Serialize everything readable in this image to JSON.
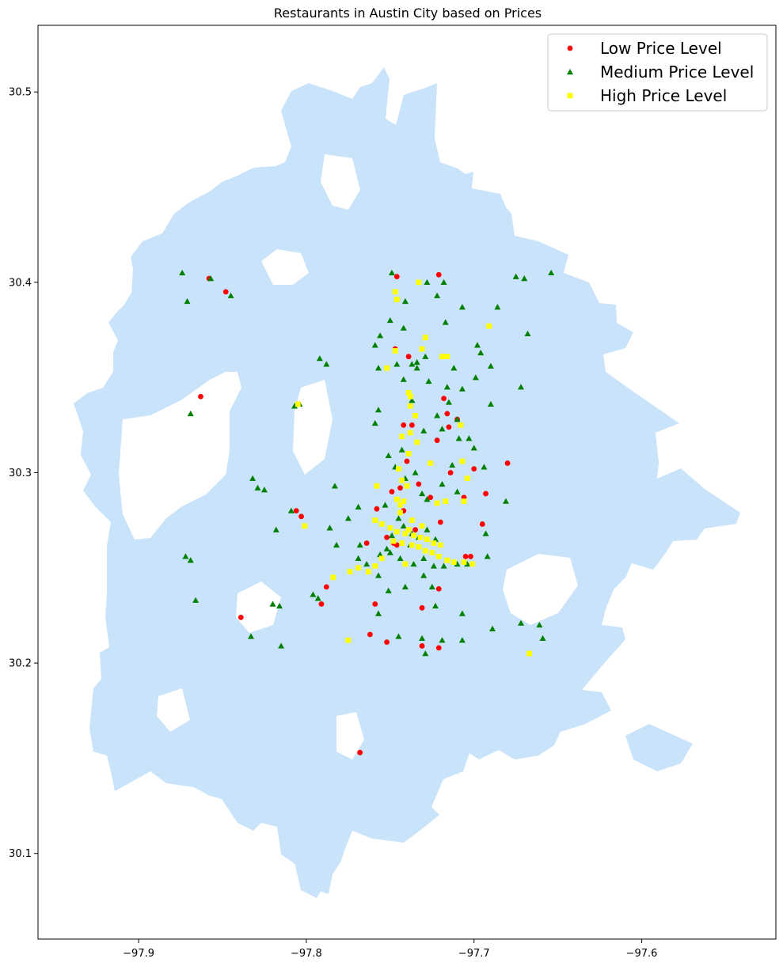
{
  "chart_data": {
    "type": "scatter",
    "title": "Restaurants in Austin City based on Prices",
    "xlabel": "",
    "ylabel": "",
    "xlim": [
      -97.96,
      -97.52
    ],
    "ylim": [
      30.055,
      30.535
    ],
    "x_ticks": [
      "−97.9",
      "−97.8",
      "−97.7",
      "−97.6"
    ],
    "x_tick_values": [
      -97.9,
      -97.8,
      -97.7,
      -97.6
    ],
    "y_ticks": [
      "30.1",
      "30.2",
      "30.3",
      "30.4",
      "30.5"
    ],
    "y_tick_values": [
      30.1,
      30.2,
      30.3,
      30.4,
      30.5
    ],
    "grid": false,
    "legend_position": "top-right",
    "background_region_color": "#c9e3fb",
    "series": [
      {
        "name": "Low Price Level",
        "color": "#ff0000",
        "marker": "circle",
        "points": [
          [
            -97.858,
            30.402
          ],
          [
            -97.848,
            30.395
          ],
          [
            -97.746,
            30.403
          ],
          [
            -97.721,
            30.404
          ],
          [
            -97.863,
            30.34
          ],
          [
            -97.747,
            30.365
          ],
          [
            -97.739,
            30.361
          ],
          [
            -97.718,
            30.339
          ],
          [
            -97.716,
            30.331
          ],
          [
            -97.71,
            30.328
          ],
          [
            -97.742,
            30.325
          ],
          [
            -97.737,
            30.325
          ],
          [
            -97.715,
            30.324
          ],
          [
            -97.722,
            30.317
          ],
          [
            -97.68,
            30.305
          ],
          [
            -97.7,
            30.302
          ],
          [
            -97.706,
            30.287
          ],
          [
            -97.693,
            30.289
          ],
          [
            -97.726,
            30.287
          ],
          [
            -97.74,
            30.306
          ],
          [
            -97.733,
            30.294
          ],
          [
            -97.749,
            30.29
          ],
          [
            -97.742,
            30.28
          ],
          [
            -97.758,
            30.281
          ],
          [
            -97.806,
            30.28
          ],
          [
            -97.803,
            30.277
          ],
          [
            -97.72,
            30.274
          ],
          [
            -97.695,
            30.273
          ],
          [
            -97.752,
            30.266
          ],
          [
            -97.764,
            30.263
          ],
          [
            -97.746,
            30.262
          ],
          [
            -97.705,
            30.256
          ],
          [
            -97.702,
            30.256
          ],
          [
            -97.721,
            30.239
          ],
          [
            -97.788,
            30.24
          ],
          [
            -97.791,
            30.231
          ],
          [
            -97.759,
            30.231
          ],
          [
            -97.731,
            30.229
          ],
          [
            -97.839,
            30.224
          ],
          [
            -97.762,
            30.215
          ],
          [
            -97.752,
            30.211
          ],
          [
            -97.731,
            30.209
          ],
          [
            -97.721,
            30.208
          ],
          [
            -97.768,
            30.153
          ],
          [
            -97.748,
            30.263
          ],
          [
            -97.735,
            30.27
          ],
          [
            -97.714,
            30.3
          ],
          [
            -97.744,
            30.292
          ]
        ]
      },
      {
        "name": "Medium Price Level",
        "color": "#008000",
        "marker": "triangle",
        "points": [
          [
            -97.874,
            30.405
          ],
          [
            -97.857,
            30.402
          ],
          [
            -97.845,
            30.393
          ],
          [
            -97.871,
            30.39
          ],
          [
            -97.869,
            30.331
          ],
          [
            -97.749,
            30.405
          ],
          [
            -97.741,
            30.39
          ],
          [
            -97.728,
            30.4
          ],
          [
            -97.718,
            30.4
          ],
          [
            -97.722,
            30.393
          ],
          [
            -97.707,
            30.387
          ],
          [
            -97.742,
            30.376
          ],
          [
            -97.75,
            30.38
          ],
          [
            -97.717,
            30.379
          ],
          [
            -97.686,
            30.387
          ],
          [
            -97.675,
            30.403
          ],
          [
            -97.67,
            30.402
          ],
          [
            -97.654,
            30.405
          ],
          [
            -97.668,
            30.373
          ],
          [
            -97.698,
            30.367
          ],
          [
            -97.696,
            30.363
          ],
          [
            -97.69,
            30.356
          ],
          [
            -97.756,
            30.372
          ],
          [
            -97.759,
            30.367
          ],
          [
            -97.792,
            30.36
          ],
          [
            -97.788,
            30.357
          ],
          [
            -97.757,
            30.355
          ],
          [
            -97.746,
            30.357
          ],
          [
            -97.737,
            30.357
          ],
          [
            -97.734,
            30.355
          ],
          [
            -97.729,
            30.361
          ],
          [
            -97.742,
            30.349
          ],
          [
            -97.727,
            30.348
          ],
          [
            -97.712,
            30.355
          ],
          [
            -97.716,
            30.345
          ],
          [
            -97.699,
            30.35
          ],
          [
            -97.672,
            30.345
          ],
          [
            -97.707,
            30.344
          ],
          [
            -97.715,
            30.337
          ],
          [
            -97.722,
            30.33
          ],
          [
            -97.73,
            30.322
          ],
          [
            -97.719,
            30.323
          ],
          [
            -97.71,
            30.328
          ],
          [
            -97.703,
            30.318
          ],
          [
            -97.709,
            30.318
          ],
          [
            -97.69,
            30.336
          ],
          [
            -97.713,
            30.304
          ],
          [
            -97.7,
            30.313
          ],
          [
            -97.694,
            30.303
          ],
          [
            -97.757,
            30.333
          ],
          [
            -97.759,
            30.326
          ],
          [
            -97.807,
            30.335
          ],
          [
            -97.804,
            30.336
          ],
          [
            -97.751,
            30.309
          ],
          [
            -97.747,
            30.303
          ],
          [
            -97.735,
            30.3
          ],
          [
            -97.719,
            30.294
          ],
          [
            -97.71,
            30.29
          ],
          [
            -97.728,
            30.286
          ],
          [
            -97.731,
            30.289
          ],
          [
            -97.753,
            30.283
          ],
          [
            -97.769,
            30.282
          ],
          [
            -97.783,
            30.293
          ],
          [
            -97.832,
            30.297
          ],
          [
            -97.829,
            30.292
          ],
          [
            -97.825,
            30.291
          ],
          [
            -97.809,
            30.28
          ],
          [
            -97.818,
            30.27
          ],
          [
            -97.786,
            30.271
          ],
          [
            -97.782,
            30.262
          ],
          [
            -97.775,
            30.276
          ],
          [
            -97.768,
            30.262
          ],
          [
            -97.769,
            30.255
          ],
          [
            -97.764,
            30.252
          ],
          [
            -97.756,
            30.257
          ],
          [
            -97.75,
            30.258
          ],
          [
            -97.744,
            30.255
          ],
          [
            -97.736,
            30.252
          ],
          [
            -97.73,
            30.255
          ],
          [
            -97.724,
            30.251
          ],
          [
            -97.718,
            30.251
          ],
          [
            -97.71,
            30.252
          ],
          [
            -97.704,
            30.252
          ],
          [
            -97.692,
            30.256
          ],
          [
            -97.681,
            30.285
          ],
          [
            -97.693,
            30.268
          ],
          [
            -97.757,
            30.246
          ],
          [
            -97.751,
            30.238
          ],
          [
            -97.741,
            30.24
          ],
          [
            -97.73,
            30.246
          ],
          [
            -97.725,
            30.24
          ],
          [
            -97.872,
            30.256
          ],
          [
            -97.869,
            30.254
          ],
          [
            -97.866,
            30.233
          ],
          [
            -97.796,
            30.236
          ],
          [
            -97.793,
            30.234
          ],
          [
            -97.82,
            30.231
          ],
          [
            -97.816,
            30.23
          ],
          [
            -97.723,
            30.23
          ],
          [
            -97.707,
            30.226
          ],
          [
            -97.833,
            30.214
          ],
          [
            -97.815,
            30.209
          ],
          [
            -97.757,
            30.226
          ],
          [
            -97.745,
            30.214
          ],
          [
            -97.731,
            30.213
          ],
          [
            -97.729,
            30.205
          ],
          [
            -97.719,
            30.212
          ],
          [
            -97.707,
            30.212
          ],
          [
            -97.689,
            30.218
          ],
          [
            -97.672,
            30.221
          ],
          [
            -97.661,
            30.22
          ],
          [
            -97.659,
            30.213
          ],
          [
            -97.737,
            30.268
          ],
          [
            -97.742,
            30.272
          ],
          [
            -97.745,
            30.276
          ],
          [
            -97.738,
            30.262
          ],
          [
            -97.733,
            30.266
          ],
          [
            -97.728,
            30.27
          ],
          [
            -97.749,
            30.267
          ],
          [
            -97.752,
            30.26
          ],
          [
            -97.723,
            30.265
          ],
          [
            -97.741,
            30.297
          ],
          [
            -97.743,
            30.312
          ],
          [
            -97.737,
            30.338
          ],
          [
            -97.734,
            30.358
          ]
        ]
      },
      {
        "name": "High Price Level",
        "color": "#ffff00",
        "marker": "square",
        "points": [
          [
            -97.733,
            30.4
          ],
          [
            -97.747,
            30.395
          ],
          [
            -97.746,
            30.391
          ],
          [
            -97.691,
            30.377
          ],
          [
            -97.729,
            30.371
          ],
          [
            -97.747,
            30.364
          ],
          [
            -97.731,
            30.365
          ],
          [
            -97.719,
            30.361
          ],
          [
            -97.716,
            30.361
          ],
          [
            -97.752,
            30.355
          ],
          [
            -97.739,
            30.342
          ],
          [
            -97.738,
            30.34
          ],
          [
            -97.738,
            30.335
          ],
          [
            -97.735,
            30.33
          ],
          [
            -97.805,
            30.336
          ],
          [
            -97.743,
            30.319
          ],
          [
            -97.738,
            30.321
          ],
          [
            -97.734,
            30.316
          ],
          [
            -97.739,
            30.31
          ],
          [
            -97.726,
            30.305
          ],
          [
            -97.708,
            30.325
          ],
          [
            -97.707,
            30.306
          ],
          [
            -97.704,
            30.297
          ],
          [
            -97.745,
            30.302
          ],
          [
            -97.743,
            30.296
          ],
          [
            -97.74,
            30.293
          ],
          [
            -97.758,
            30.293
          ],
          [
            -97.746,
            30.286
          ],
          [
            -97.742,
            30.285
          ],
          [
            -97.722,
            30.284
          ],
          [
            -97.717,
            30.285
          ],
          [
            -97.706,
            30.285
          ],
          [
            -97.744,
            30.279
          ],
          [
            -97.759,
            30.275
          ],
          [
            -97.755,
            30.273
          ],
          [
            -97.75,
            30.271
          ],
          [
            -97.746,
            30.269
          ],
          [
            -97.741,
            30.268
          ],
          [
            -97.736,
            30.267
          ],
          [
            -97.732,
            30.266
          ],
          [
            -97.728,
            30.265
          ],
          [
            -97.724,
            30.263
          ],
          [
            -97.72,
            30.262
          ],
          [
            -97.748,
            30.264
          ],
          [
            -97.743,
            30.263
          ],
          [
            -97.737,
            30.262
          ],
          [
            -97.733,
            30.261
          ],
          [
            -97.729,
            30.259
          ],
          [
            -97.725,
            30.258
          ],
          [
            -97.721,
            30.256
          ],
          [
            -97.716,
            30.254
          ],
          [
            -97.712,
            30.253
          ],
          [
            -97.706,
            30.253
          ],
          [
            -97.701,
            30.252
          ],
          [
            -97.755,
            30.255
          ],
          [
            -97.759,
            30.251
          ],
          [
            -97.763,
            30.248
          ],
          [
            -97.784,
            30.245
          ],
          [
            -97.774,
            30.248
          ],
          [
            -97.769,
            30.25
          ],
          [
            -97.741,
            30.252
          ],
          [
            -97.801,
            30.272
          ],
          [
            -97.775,
            30.212
          ],
          [
            -97.667,
            30.205
          ],
          [
            -97.731,
            30.272
          ],
          [
            -97.737,
            30.275
          ],
          [
            -97.744,
            30.283
          ],
          [
            -97.739,
            30.27
          ]
        ]
      }
    ]
  }
}
